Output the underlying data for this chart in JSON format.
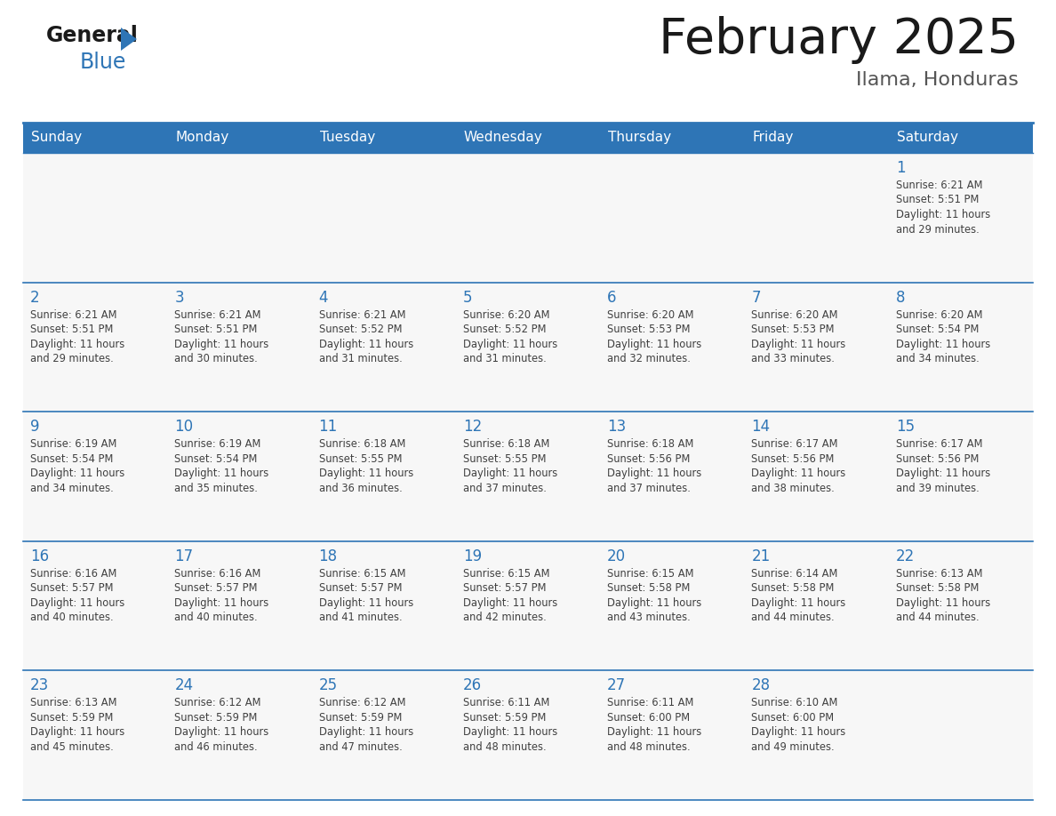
{
  "title": "February 2025",
  "subtitle": "Ilama, Honduras",
  "header_bg_color": "#2E75B6",
  "header_text_color": "#FFFFFF",
  "cell_bg_color": "#FFFFFF",
  "cell_alt_bg_color": "#F2F2F2",
  "cell_text_color": "#404040",
  "day_number_color": "#2E75B6",
  "grid_line_color": "#2E75B6",
  "days_of_week": [
    "Sunday",
    "Monday",
    "Tuesday",
    "Wednesday",
    "Thursday",
    "Friday",
    "Saturday"
  ],
  "calendar_data": [
    [
      null,
      null,
      null,
      null,
      null,
      null,
      {
        "day": 1,
        "sunrise": "6:21 AM",
        "sunset": "5:51 PM",
        "daylight": "11 hours and 29 minutes."
      }
    ],
    [
      {
        "day": 2,
        "sunrise": "6:21 AM",
        "sunset": "5:51 PM",
        "daylight": "11 hours and 29 minutes."
      },
      {
        "day": 3,
        "sunrise": "6:21 AM",
        "sunset": "5:51 PM",
        "daylight": "11 hours and 30 minutes."
      },
      {
        "day": 4,
        "sunrise": "6:21 AM",
        "sunset": "5:52 PM",
        "daylight": "11 hours and 31 minutes."
      },
      {
        "day": 5,
        "sunrise": "6:20 AM",
        "sunset": "5:52 PM",
        "daylight": "11 hours and 31 minutes."
      },
      {
        "day": 6,
        "sunrise": "6:20 AM",
        "sunset": "5:53 PM",
        "daylight": "11 hours and 32 minutes."
      },
      {
        "day": 7,
        "sunrise": "6:20 AM",
        "sunset": "5:53 PM",
        "daylight": "11 hours and 33 minutes."
      },
      {
        "day": 8,
        "sunrise": "6:20 AM",
        "sunset": "5:54 PM",
        "daylight": "11 hours and 34 minutes."
      }
    ],
    [
      {
        "day": 9,
        "sunrise": "6:19 AM",
        "sunset": "5:54 PM",
        "daylight": "11 hours and 34 minutes."
      },
      {
        "day": 10,
        "sunrise": "6:19 AM",
        "sunset": "5:54 PM",
        "daylight": "11 hours and 35 minutes."
      },
      {
        "day": 11,
        "sunrise": "6:18 AM",
        "sunset": "5:55 PM",
        "daylight": "11 hours and 36 minutes."
      },
      {
        "day": 12,
        "sunrise": "6:18 AM",
        "sunset": "5:55 PM",
        "daylight": "11 hours and 37 minutes."
      },
      {
        "day": 13,
        "sunrise": "6:18 AM",
        "sunset": "5:56 PM",
        "daylight": "11 hours and 37 minutes."
      },
      {
        "day": 14,
        "sunrise": "6:17 AM",
        "sunset": "5:56 PM",
        "daylight": "11 hours and 38 minutes."
      },
      {
        "day": 15,
        "sunrise": "6:17 AM",
        "sunset": "5:56 PM",
        "daylight": "11 hours and 39 minutes."
      }
    ],
    [
      {
        "day": 16,
        "sunrise": "6:16 AM",
        "sunset": "5:57 PM",
        "daylight": "11 hours and 40 minutes."
      },
      {
        "day": 17,
        "sunrise": "6:16 AM",
        "sunset": "5:57 PM",
        "daylight": "11 hours and 40 minutes."
      },
      {
        "day": 18,
        "sunrise": "6:15 AM",
        "sunset": "5:57 PM",
        "daylight": "11 hours and 41 minutes."
      },
      {
        "day": 19,
        "sunrise": "6:15 AM",
        "sunset": "5:57 PM",
        "daylight": "11 hours and 42 minutes."
      },
      {
        "day": 20,
        "sunrise": "6:15 AM",
        "sunset": "5:58 PM",
        "daylight": "11 hours and 43 minutes."
      },
      {
        "day": 21,
        "sunrise": "6:14 AM",
        "sunset": "5:58 PM",
        "daylight": "11 hours and 44 minutes."
      },
      {
        "day": 22,
        "sunrise": "6:13 AM",
        "sunset": "5:58 PM",
        "daylight": "11 hours and 44 minutes."
      }
    ],
    [
      {
        "day": 23,
        "sunrise": "6:13 AM",
        "sunset": "5:59 PM",
        "daylight": "11 hours and 45 minutes."
      },
      {
        "day": 24,
        "sunrise": "6:12 AM",
        "sunset": "5:59 PM",
        "daylight": "11 hours and 46 minutes."
      },
      {
        "day": 25,
        "sunrise": "6:12 AM",
        "sunset": "5:59 PM",
        "daylight": "11 hours and 47 minutes."
      },
      {
        "day": 26,
        "sunrise": "6:11 AM",
        "sunset": "5:59 PM",
        "daylight": "11 hours and 48 minutes."
      },
      {
        "day": 27,
        "sunrise": "6:11 AM",
        "sunset": "6:00 PM",
        "daylight": "11 hours and 48 minutes."
      },
      {
        "day": 28,
        "sunrise": "6:10 AM",
        "sunset": "6:00 PM",
        "daylight": "11 hours and 49 minutes."
      },
      null
    ]
  ]
}
